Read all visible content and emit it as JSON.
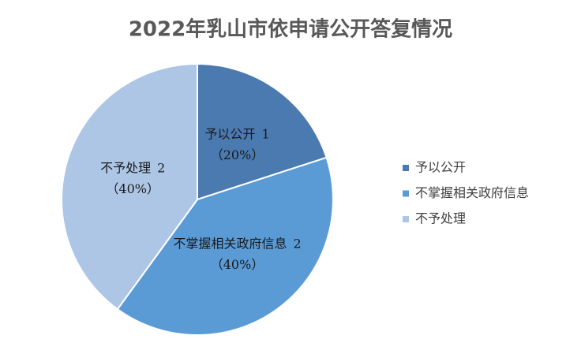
{
  "chart_data": {
    "type": "pie",
    "title": "2022年乳山市依申请公开答复情况",
    "categories": [
      "予以公开",
      "不掌握相关政府信息",
      "不予处理"
    ],
    "values": [
      1,
      2,
      2
    ],
    "percents": [
      20,
      40,
      40
    ],
    "percent_labels": [
      "（20%）",
      "（40%）",
      "（40%）"
    ],
    "colors": [
      "#4a7ab0",
      "#5b9bd5",
      "#adc6e6"
    ],
    "legend": "right"
  }
}
